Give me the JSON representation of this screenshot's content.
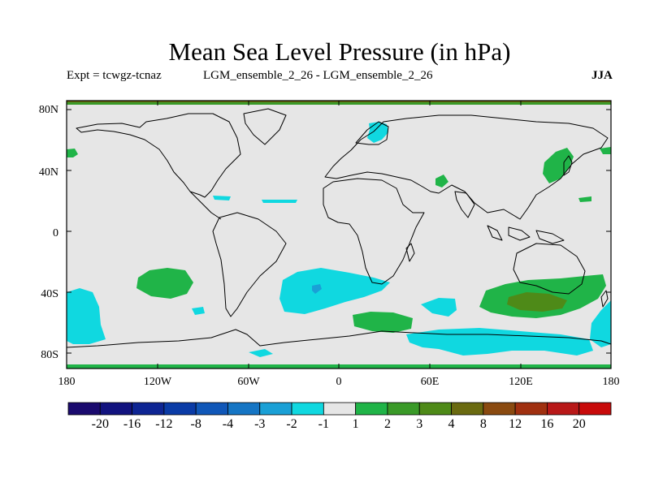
{
  "title": "Mean Sea Level Pressure (in hPa)",
  "subtitle_left": "Expt = tcwgz-tcnaz",
  "subtitle_center": "LGM_ensemble_2_26 - LGM_ensemble_2_26",
  "subtitle_right": "JJA",
  "lat_labels": [
    "80N",
    "40N",
    "0",
    "40S",
    "80S"
  ],
  "lon_labels": [
    "180",
    "120W",
    "60W",
    "0",
    "60E",
    "120E",
    "180"
  ],
  "colorbar": {
    "labels": [
      "-20",
      "-16",
      "-12",
      "-8",
      "-4",
      "-3",
      "-2",
      "-1",
      "1",
      "2",
      "3",
      "4",
      "8",
      "12",
      "16",
      "20"
    ],
    "colors": [
      "#1a0a6e",
      "#12137f",
      "#0e2593",
      "#0a3ba6",
      "#1057b8",
      "#1575c4",
      "#1aa0d6",
      "#10d8e0",
      "#e6e6e6",
      "#20b448",
      "#3a9a28",
      "#4e8a18",
      "#6a6a10",
      "#8a4a10",
      "#a03010",
      "#b81818",
      "#c80a0a"
    ]
  },
  "chart_data": {
    "type": "filled-contour-map",
    "variable": "Mean Sea Level Pressure difference",
    "units": "hPa",
    "season": "JJA",
    "lon_range": [
      -180,
      180
    ],
    "lat_range": [
      -90,
      90
    ],
    "levels": [
      -20,
      -16,
      -12,
      -8,
      -4,
      -3,
      -2,
      -1,
      1,
      2,
      3,
      4,
      8,
      12,
      16,
      20
    ],
    "background_level": "-1 to 1",
    "regions": [
      {
        "name": "north-polar-band",
        "range": "1 to 2",
        "lat": 89
      },
      {
        "name": "north-polar-edge",
        "range": "3 to 4",
        "lat": 89.5
      },
      {
        "name": "south-polar-band",
        "range": "1 to 2",
        "lat": -88
      },
      {
        "name": "scandinavia",
        "range": "-2 to -1",
        "lon": 22,
        "lat": 63
      },
      {
        "name": "east-asia-japan",
        "range": "1 to 2",
        "lon": 140,
        "lat": 40
      },
      {
        "name": "central-asia",
        "range": "1 to 2",
        "lon": 65,
        "lat": 32
      },
      {
        "name": "east-pacific-south",
        "range": "1 to 2",
        "lon": -125,
        "lat": -33
      },
      {
        "name": "south-atlantic",
        "range": "-2 to -1",
        "lon": -15,
        "lat": -37
      },
      {
        "name": "south-atlantic-core",
        "range": "-3 to -2",
        "lon": -14,
        "lat": -36
      },
      {
        "name": "southern-ocean-indian",
        "range": "1 to 2",
        "lon": 25,
        "lat": -58
      },
      {
        "name": "southern-ocean-ring",
        "range": "-2 to -1",
        "lon": 75,
        "lat": -72
      },
      {
        "name": "south-australia",
        "range": "1 to 2",
        "lon": 130,
        "lat": -45
      },
      {
        "name": "south-australia-core",
        "range": "3 to 4",
        "lon": 125,
        "lat": -45
      },
      {
        "name": "south-pacific-west",
        "range": "-2 to -1",
        "lon": -170,
        "lat": -55
      },
      {
        "name": "south-pacific-east",
        "range": "-2 to -1",
        "lon": 175,
        "lat": -58
      }
    ]
  }
}
